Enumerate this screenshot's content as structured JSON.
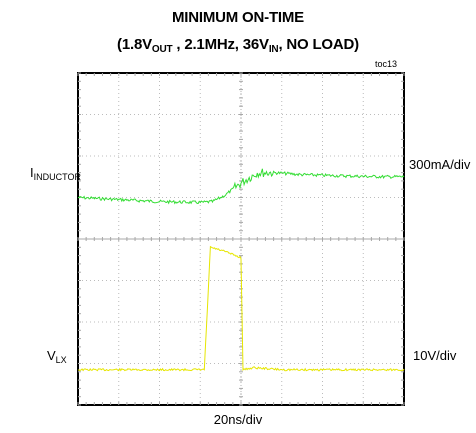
{
  "title": {
    "line1": "MINIMUM ON-TIME",
    "line2_prefix": "(1.8V",
    "line2_sub_out": "OUT",
    "line2_mid": " , 2.1MHz, 36V",
    "line2_sub_in": "IN",
    "line2_suffix": ", NO LOAD)"
  },
  "figure_id": "toc13",
  "channels": {
    "inductor_label_main": "I",
    "inductor_label_sub": "INDUCTOR",
    "inductor_scale": "300mA/div",
    "vlx_label_main": "V",
    "vlx_label_sub": "LX",
    "vlx_scale": "10V/div"
  },
  "time_scale": "20ns/div",
  "chart_data": {
    "type": "line",
    "title": "MINIMUM ON-TIME (1.8VOUT , 2.1MHz, 36VIN, NO LOAD)",
    "xlabel": "20ns/div",
    "grid": {
      "x_divisions": 8,
      "y_divisions": 8,
      "minor_ticks_per_div": 5
    },
    "x_unit": "div",
    "xlim": [
      0,
      8
    ],
    "ylim": [
      0,
      8
    ],
    "series": [
      {
        "name": "I INDUCTOR",
        "scale": "300mA/div",
        "color": "#33dd33",
        "x": [
          0,
          1,
          2,
          3,
          3.3,
          3.6,
          4.0,
          4.4,
          4.8,
          5.5,
          6.5,
          7.5,
          8
        ],
        "y": [
          5.0,
          4.95,
          4.9,
          4.88,
          4.9,
          5.05,
          5.35,
          5.6,
          5.6,
          5.55,
          5.52,
          5.5,
          5.5
        ]
      },
      {
        "name": "V LX",
        "scale": "10V/div",
        "color": "#e6e600",
        "x": [
          0,
          1,
          2,
          3.1,
          3.25,
          3.6,
          4.0,
          4.05,
          4.3,
          5,
          6,
          7,
          8
        ],
        "y": [
          0.85,
          0.85,
          0.85,
          0.85,
          3.8,
          3.7,
          3.55,
          0.85,
          0.9,
          0.85,
          0.85,
          0.85,
          0.85
        ]
      }
    ]
  }
}
